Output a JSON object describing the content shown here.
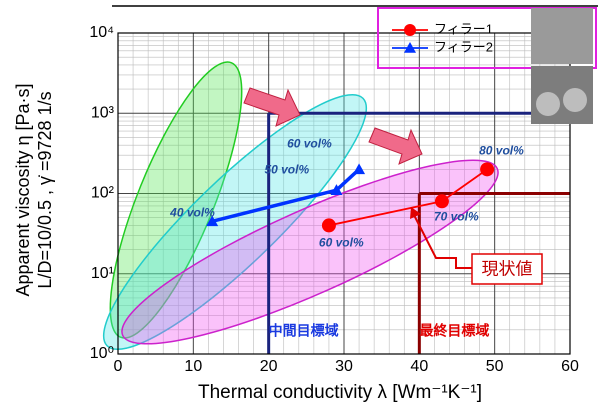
{
  "chart_data": {
    "type": "line",
    "xlabel": "Thermal conductivity λ [Wm⁻¹K⁻¹]",
    "ylabel": [
      "Apparent viscosity η [Pa·s]",
      "L/D=10/0.5 , γ̇ =9728 1/s"
    ],
    "xlim": [
      0,
      60
    ],
    "xticks": [
      0,
      10,
      20,
      30,
      40,
      50,
      60
    ],
    "ylim": [
      1,
      10000
    ],
    "log_y": true,
    "yticks": [
      {
        "value": 1,
        "label": "10⁰"
      },
      {
        "value": 10,
        "label": "10¹"
      },
      {
        "value": 100,
        "label": "10²"
      },
      {
        "value": 1000,
        "label": "10³"
      },
      {
        "value": 10000,
        "label": "10⁴"
      }
    ],
    "grid": true,
    "minor_grid": true,
    "legend": "upper right",
    "series": [
      {
        "name": "フィラー1",
        "color": "#ff0000",
        "marker": "circle",
        "x": [
          28,
          43,
          49
        ],
        "values": [
          40,
          80,
          200
        ],
        "point_labels": [
          "60 vol%",
          "70 vol%",
          "80 vol%"
        ]
      },
      {
        "name": "フィラー2",
        "color": "#0033ff",
        "marker": "triangle",
        "x": [
          12.5,
          29,
          32
        ],
        "values": [
          45,
          110,
          200
        ],
        "point_labels": [
          "40 vol%",
          "50 vol%",
          "60 vol%"
        ]
      }
    ],
    "regions": [
      {
        "label": "中間目標域",
        "x": 20,
        "y": 1000,
        "color": "#1a237e"
      },
      {
        "label": "最終目標域",
        "x": 40,
        "y": 100,
        "color": "#8b0000"
      }
    ],
    "annotation": "現状値"
  }
}
